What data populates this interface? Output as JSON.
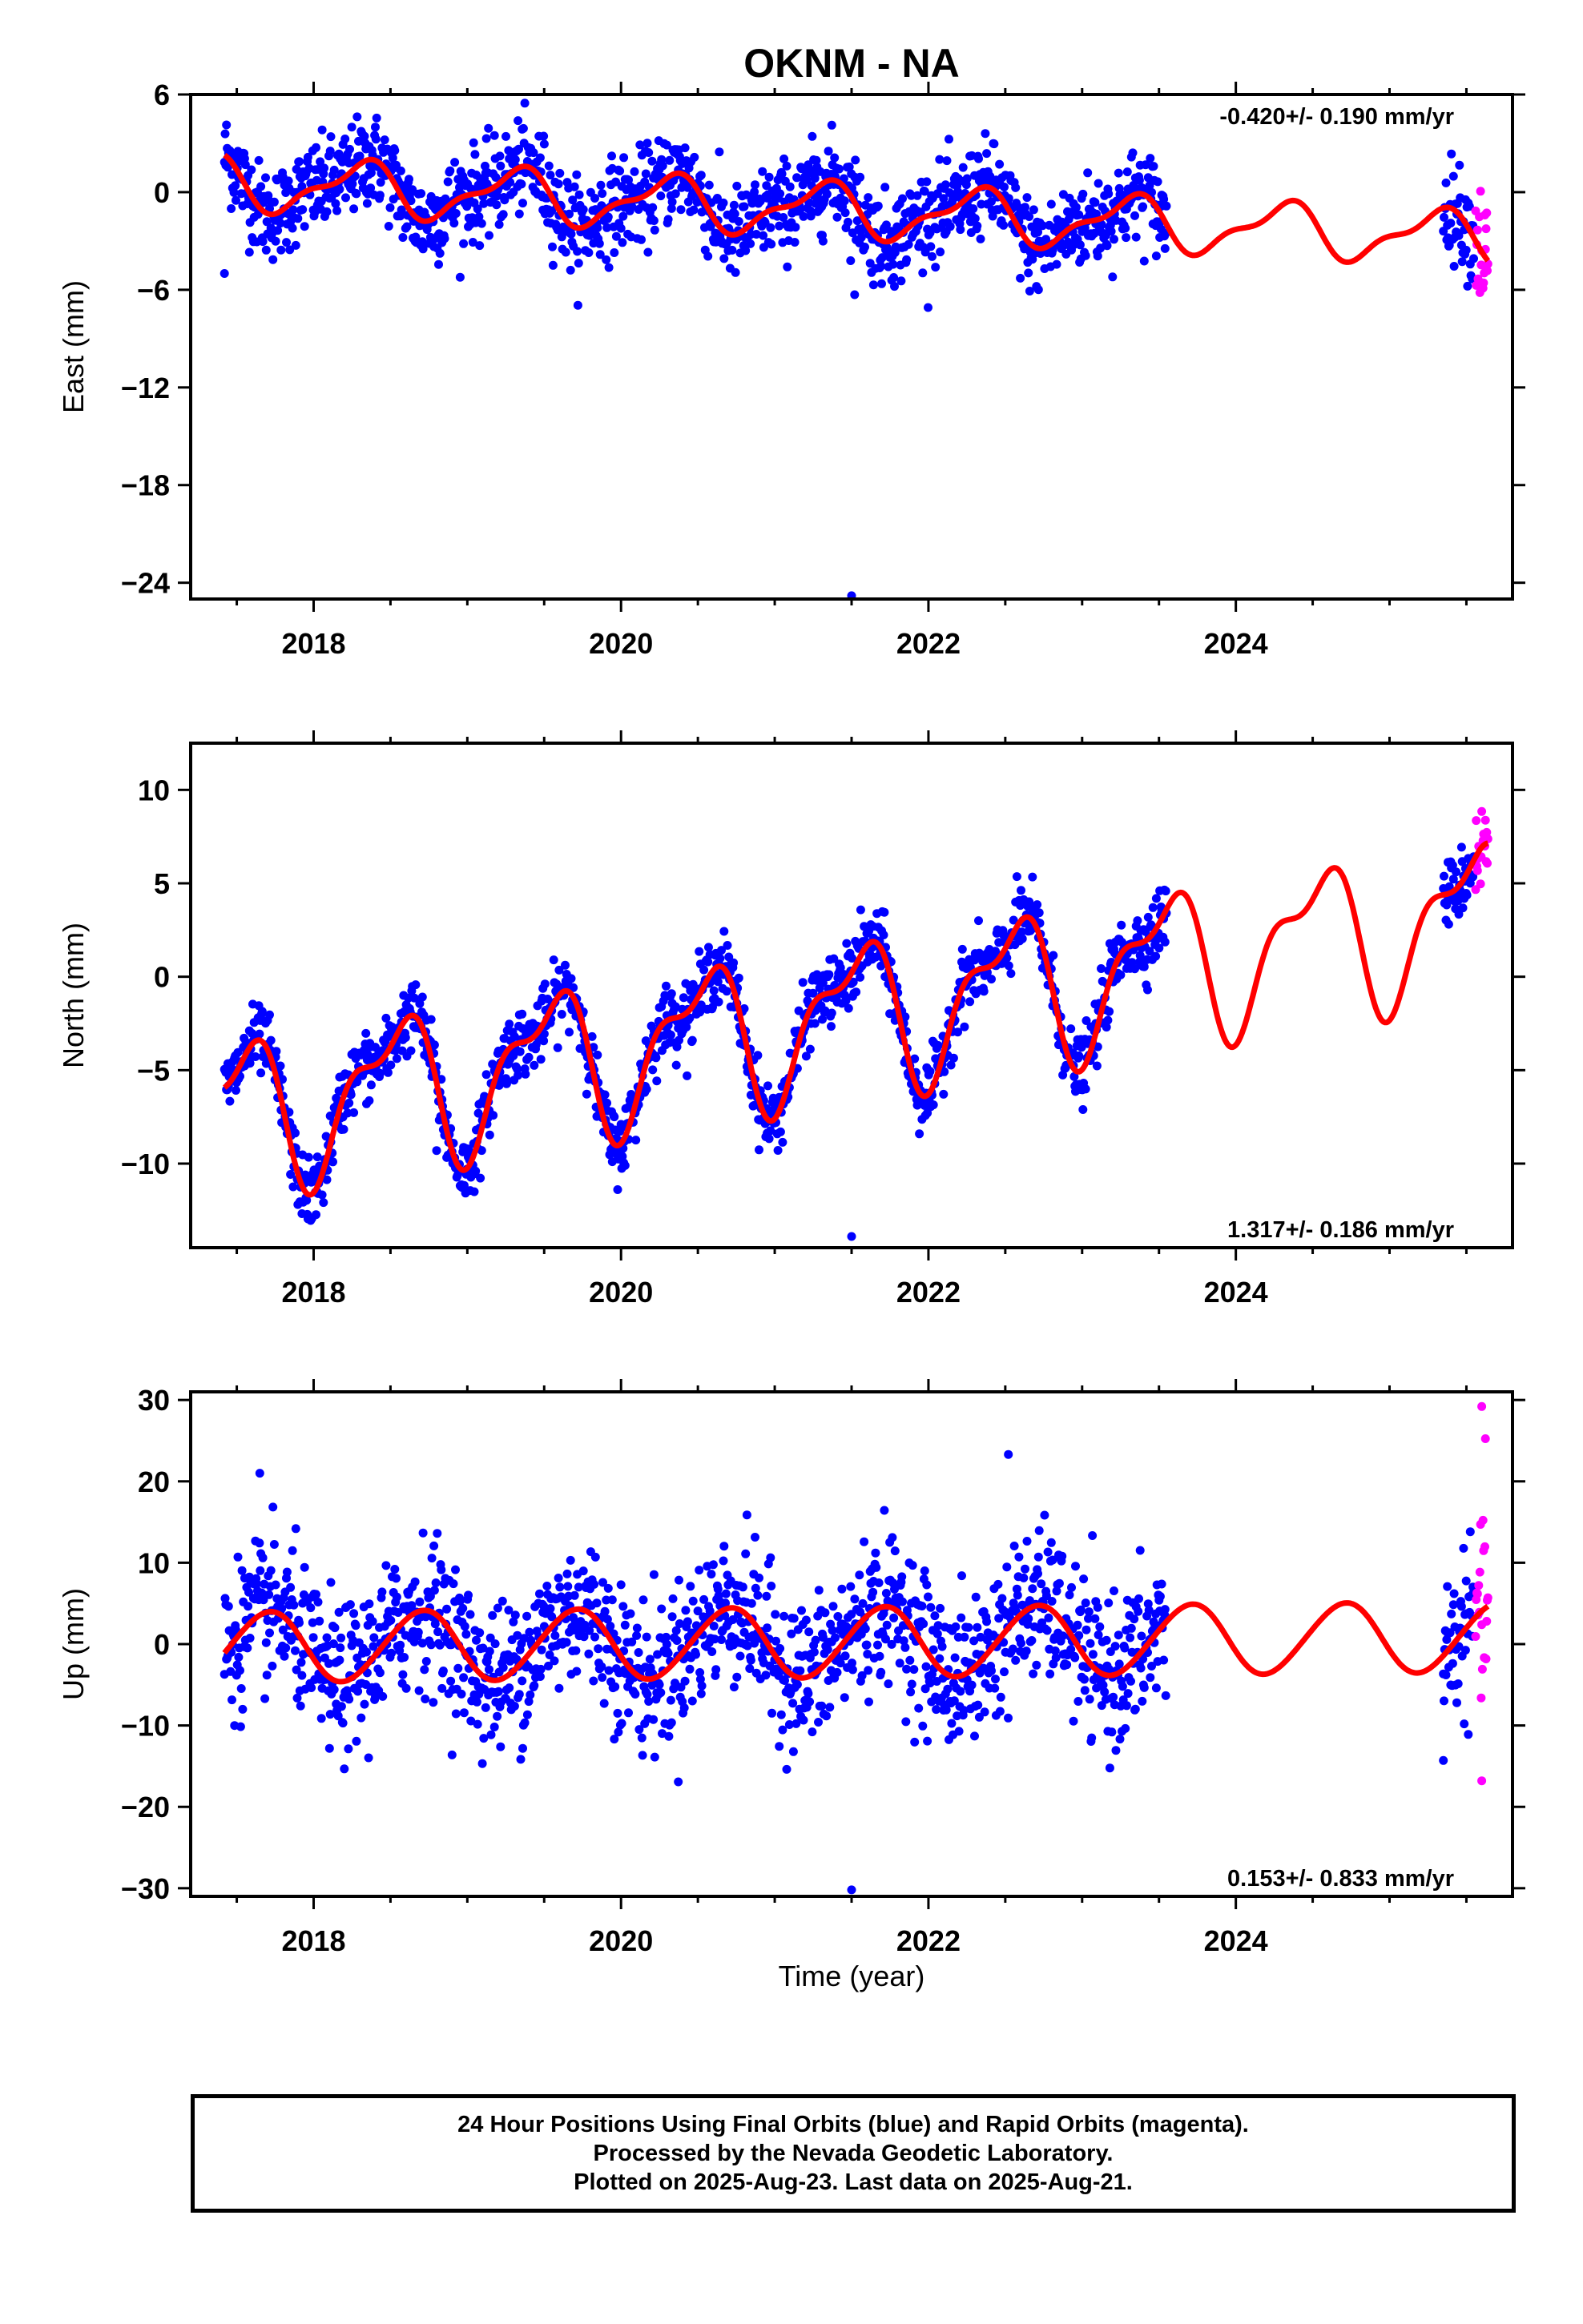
{
  "title": "OKNM - NA",
  "xlabel": "Time (year)",
  "colors": {
    "final": "#0000ff",
    "rapid": "#ff00ff",
    "model": "#ff0000",
    "axis": "#000000"
  },
  "footer": {
    "lines": [
      "24 Hour Positions Using Final Orbits (blue) and Rapid Orbits (magenta).",
      "Processed by the Nevada Geodetic Laboratory.",
      "Plotted on 2025-Aug-23. Last data on 2025-Aug-21."
    ]
  },
  "chart_data": [
    {
      "type": "scatter",
      "component": "east",
      "ylabel": "East (mm)",
      "velocity_label": "-0.420+/- 0.190 mm/yr",
      "xlim": [
        2017.2,
        2025.8
      ],
      "ylim": [
        -25,
        6
      ],
      "xticks": [
        2018,
        2020,
        2022,
        2024
      ],
      "xticks_minor": [
        2017.5,
        2018.5,
        2019,
        2019.5,
        2020.5,
        2021,
        2021.5,
        2022.5,
        2023,
        2023.5,
        2024.5,
        2025,
        2025.5
      ],
      "yticks": [
        6,
        0,
        -6,
        -12,
        -18,
        -24
      ],
      "model": {
        "mean": -0.5,
        "trend": -0.42,
        "amp": 1.5,
        "phase": 0.05,
        "semi_amp": 0.6,
        "semi_phase": 0.3
      },
      "noise_sd": 1.4,
      "final_ranges": [
        [
          2017.42,
          2023.55
        ],
        [
          2025.35,
          2025.55
        ]
      ],
      "rapid_range": [
        2025.56,
        2025.64
      ],
      "outliers": [
        [
          2017.42,
          -5.0
        ],
        [
          2021.5,
          -24.8
        ],
        [
          2021.52,
          -6.3
        ]
      ]
    },
    {
      "type": "scatter",
      "component": "north",
      "ylabel": "North (mm)",
      "velocity_label": "1.317+/- 0.186 mm/yr",
      "xlim": [
        2017.2,
        2025.8
      ],
      "ylim": [
        -14.5,
        12.5
      ],
      "xticks": [
        2018,
        2020,
        2022,
        2024
      ],
      "xticks_minor": [
        2017.5,
        2018.5,
        2019,
        2019.5,
        2020.5,
        2021,
        2021.5,
        2022.5,
        2023,
        2023.5,
        2024.5,
        2025,
        2025.5
      ],
      "yticks": [
        10,
        5,
        0,
        -5,
        -10
      ],
      "model": {
        "mean": -4.0,
        "trend": 1.317,
        "amp": 3.6,
        "phase": 0.27,
        "semi_amp": 1.6,
        "semi_phase": 0.08
      },
      "noise_sd": 0.9,
      "final_ranges": [
        [
          2017.42,
          2023.55
        ],
        [
          2025.35,
          2025.55
        ]
      ],
      "rapid_range": [
        2025.56,
        2025.64
      ],
      "outliers": [
        [
          2021.5,
          -13.9
        ],
        [
          2018.8,
          -9.3
        ]
      ]
    },
    {
      "type": "scatter",
      "component": "up",
      "ylabel": "Up (mm)",
      "velocity_label": "0.153+/- 0.833 mm/yr",
      "xlim": [
        2017.2,
        2025.8
      ],
      "ylim": [
        -31,
        31
      ],
      "xticks": [
        2018,
        2020,
        2022,
        2024
      ],
      "xticks_minor": [
        2017.5,
        2018.5,
        2019,
        2019.5,
        2020.5,
        2021,
        2021.5,
        2022.5,
        2023,
        2023.5,
        2024.5,
        2025,
        2025.5
      ],
      "yticks": [
        30,
        20,
        10,
        0,
        -10,
        -20,
        -30
      ],
      "model": {
        "mean": 0.0,
        "trend": 0.153,
        "amp": 4.3,
        "phase": 0.45,
        "semi_amp": 0.3,
        "semi_phase": 0.2
      },
      "noise_sd": 4.5,
      "final_ranges": [
        [
          2017.42,
          2023.55
        ],
        [
          2025.35,
          2025.55
        ]
      ],
      "rapid_range": [
        2025.56,
        2025.64
      ],
      "outliers": [
        [
          2021.5,
          -30.2
        ],
        [
          2017.65,
          21.0
        ],
        [
          2022.52,
          23.3
        ],
        [
          2025.6,
          29.2
        ],
        [
          2025.6,
          -16.8
        ],
        [
          2025.35,
          -14.3
        ]
      ]
    }
  ]
}
